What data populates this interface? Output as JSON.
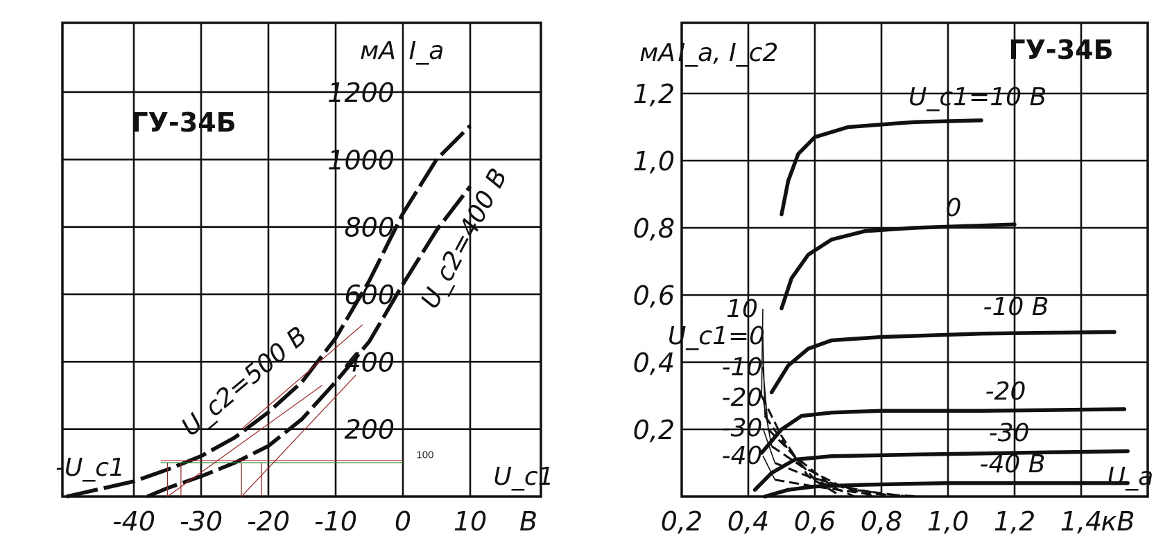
{
  "chart_data": [
    {
      "type": "line",
      "title": "ГУ-34Б",
      "xlabel": "U_c1",
      "x_unit": "В",
      "ylabel": "I_a",
      "y_unit": "мА",
      "xlim": [
        -50,
        20
      ],
      "ylim": [
        0,
        1400
      ],
      "x_ticks": [
        -40,
        -30,
        -20,
        -10,
        0,
        10
      ],
      "x_tick_labels": [
        "-40",
        "-30",
        "-20",
        "-10",
        "0",
        "10"
      ],
      "y_ticks": [
        200,
        400,
        600,
        800,
        1000,
        1200
      ],
      "y_tick_labels": [
        "200",
        "400",
        "600",
        "800",
        "1000",
        "1200"
      ],
      "neg_axis_label": "-U_c1",
      "grid": true,
      "series": [
        {
          "name": "U_c2=500 В",
          "x": [
            -50,
            -40,
            -35,
            -30,
            -25,
            -20,
            -15,
            -10,
            -5,
            0,
            5,
            10
          ],
          "y": [
            0,
            45,
            80,
            120,
            175,
            250,
            340,
            470,
            640,
            840,
            1000,
            1100
          ]
        },
        {
          "name": "U_c2=400 В",
          "x": [
            -38,
            -35,
            -30,
            -25,
            -20,
            -15,
            -10,
            -5,
            0,
            5,
            10
          ],
          "y": [
            0,
            25,
            60,
            100,
            150,
            230,
            340,
            460,
            630,
            790,
            920
          ]
        }
      ],
      "annotation": {
        "text": "100",
        "y": 100,
        "x_marks": [
          -35,
          -33,
          -24,
          -21
        ]
      }
    },
    {
      "type": "line",
      "title": "ГУ-34Б",
      "xlabel": "U_a",
      "x_unit": "кВ",
      "ylabel": "I_a, I_c2",
      "y_unit": "мА",
      "xlim": [
        0.2,
        1.6
      ],
      "ylim": [
        0,
        1.4
      ],
      "x_ticks": [
        0.2,
        0.4,
        0.6,
        0.8,
        1.0,
        1.2,
        1.4
      ],
      "x_tick_labels": [
        "0,2",
        "0,4",
        "0,6",
        "0,8",
        "1,0",
        "1,2",
        "1,4"
      ],
      "y_ticks": [
        0.2,
        0.4,
        0.6,
        0.8,
        1.0,
        1.2
      ],
      "y_tick_labels": [
        "0,2",
        "0,4",
        "0,6",
        "0,8",
        "1,0",
        "1,2"
      ],
      "grid": true,
      "series": [
        {
          "name": "U_c1=10 В",
          "x": [
            0.5,
            0.52,
            0.55,
            0.6,
            0.7,
            0.9,
            1.1
          ],
          "y": [
            0.84,
            0.94,
            1.02,
            1.07,
            1.1,
            1.115,
            1.12
          ]
        },
        {
          "name": "0",
          "x": [
            0.5,
            0.53,
            0.58,
            0.65,
            0.75,
            0.9,
            1.2
          ],
          "y": [
            0.56,
            0.65,
            0.72,
            0.765,
            0.79,
            0.8,
            0.81
          ]
        },
        {
          "name": "-10 В",
          "x": [
            0.47,
            0.52,
            0.58,
            0.65,
            0.8,
            1.1,
            1.5
          ],
          "y": [
            0.31,
            0.39,
            0.44,
            0.465,
            0.475,
            0.485,
            0.49
          ]
        },
        {
          "name": "-20",
          "x": [
            0.44,
            0.5,
            0.56,
            0.65,
            0.8,
            1.1,
            1.53
          ],
          "y": [
            0.13,
            0.2,
            0.24,
            0.25,
            0.255,
            0.255,
            0.26
          ]
        },
        {
          "name": "-30",
          "x": [
            0.42,
            0.47,
            0.54,
            0.65,
            0.9,
            1.2,
            1.54
          ],
          "y": [
            0.02,
            0.07,
            0.11,
            0.12,
            0.125,
            0.13,
            0.135
          ]
        },
        {
          "name": "-40 В",
          "x": [
            0.45,
            0.52,
            0.6,
            0.75,
            1.0,
            1.3,
            1.54
          ],
          "y": [
            0.0,
            0.02,
            0.03,
            0.035,
            0.04,
            0.04,
            0.04
          ]
        }
      ],
      "screen_series_label": "U_c1=0",
      "screen_series": [
        {
          "name": "10",
          "x": [
            0.44,
            0.5,
            0.58,
            0.68
          ],
          "y": [
            0.3,
            0.18,
            0.06,
            0.0
          ]
        },
        {
          "name": "0",
          "x": [
            0.45,
            0.52,
            0.6,
            0.72
          ],
          "y": [
            0.24,
            0.14,
            0.05,
            0.0
          ]
        },
        {
          "name": "-10",
          "x": [
            0.46,
            0.54,
            0.64,
            0.78
          ],
          "y": [
            0.2,
            0.12,
            0.04,
            0.0
          ]
        },
        {
          "name": "-20",
          "x": [
            0.47,
            0.56,
            0.68,
            0.84
          ],
          "y": [
            0.15,
            0.09,
            0.03,
            0.0
          ]
        },
        {
          "name": "-30",
          "x": [
            0.48,
            0.58,
            0.72,
            0.88
          ],
          "y": [
            0.1,
            0.06,
            0.02,
            0.0
          ]
        },
        {
          "name": "-40",
          "x": [
            0.48,
            0.6,
            0.74,
            0.92
          ],
          "y": [
            0.05,
            0.03,
            0.01,
            0.0
          ]
        }
      ]
    }
  ]
}
